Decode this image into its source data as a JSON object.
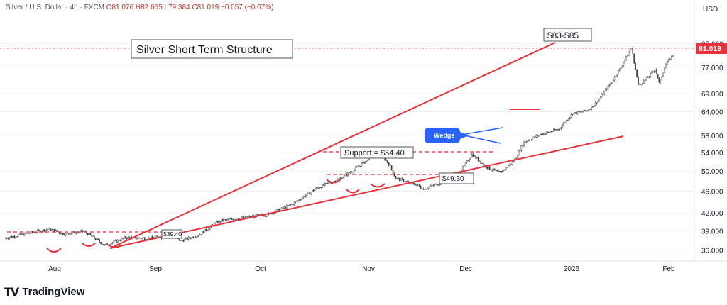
{
  "header": {
    "symbol": "Silver / U.S. Dollar · 4h · FXCM",
    "open": "O81.076",
    "high": "H82.665",
    "low": "L79.384",
    "close": "C81.019",
    "change": "−0.057 (−0.07%)"
  },
  "currency": "USD",
  "brand": "TradingView",
  "colors": {
    "trendline": "#e8323c",
    "wedge": "#2962ff",
    "candle_up": "#3a3a3a",
    "candle_down": "#3a3a3a",
    "price_tag": "#e8323c",
    "grid": "#f0f0f0"
  },
  "chart_data": {
    "type": "candlestick",
    "title": "Silver Short Term Structure",
    "ylim": [
      35,
      90
    ],
    "y_ticks": [
      36.0,
      39.0,
      42.0,
      46.0,
      50.0,
      54.0,
      58.0,
      64.0,
      69.0,
      77.0,
      85.0
    ],
    "y_tick_labels": [
      "36.000",
      "39.000",
      "42.000",
      "46.000",
      "50.000",
      "54.000",
      "58.000",
      "64.000",
      "69.000",
      "77.000",
      "85.000"
    ],
    "x_tick_labels": [
      "Aug",
      "Sep",
      "Oct",
      "Nov",
      "Dec",
      "2026",
      "Feb"
    ],
    "last_price": 81.019,
    "last_price_label": "81.019",
    "price_path": [
      [
        "2025-07-01",
        37.8
      ],
      [
        "2025-07-08",
        38.6
      ],
      [
        "2025-07-14",
        39.3
      ],
      [
        "2025-07-18",
        38.5
      ],
      [
        "2025-07-24",
        38.9
      ],
      [
        "2025-07-30",
        36.7
      ],
      [
        "2025-08-05",
        37.9
      ],
      [
        "2025-08-12",
        37.8
      ],
      [
        "2025-08-18",
        38.2
      ],
      [
        "2025-08-21",
        37.4
      ],
      [
        "2025-08-26",
        38.3
      ],
      [
        "2025-09-01",
        40.6
      ],
      [
        "2025-09-08",
        41.2
      ],
      [
        "2025-09-15",
        41.7
      ],
      [
        "2025-09-22",
        43.5
      ],
      [
        "2025-09-29",
        46.5
      ],
      [
        "2025-10-06",
        48.5
      ],
      [
        "2025-10-10",
        50.3
      ],
      [
        "2025-10-14",
        52.5
      ],
      [
        "2025-10-17",
        54.2
      ],
      [
        "2025-10-20",
        51.5
      ],
      [
        "2025-10-22",
        48.5
      ],
      [
        "2025-10-28",
        47.2
      ],
      [
        "2025-10-30",
        46.4
      ],
      [
        "2025-11-04",
        47.6
      ],
      [
        "2025-11-07",
        47.9
      ],
      [
        "2025-11-10",
        50.3
      ],
      [
        "2025-11-13",
        53.6
      ],
      [
        "2025-11-17",
        50.9
      ],
      [
        "2025-11-21",
        49.6
      ],
      [
        "2025-11-25",
        52.0
      ],
      [
        "2025-11-28",
        56.4
      ],
      [
        "2025-12-03",
        58.3
      ],
      [
        "2025-12-08",
        59.5
      ],
      [
        "2025-12-12",
        63.5
      ],
      [
        "2025-12-16",
        64.2
      ],
      [
        "2025-12-19",
        66.5
      ],
      [
        "2025-12-23",
        72.0
      ],
      [
        "2025-12-26",
        77.0
      ],
      [
        "2025-12-29",
        83.5
      ],
      [
        "2025-12-31",
        71.5
      ],
      [
        "2026-01-02",
        73.0
      ],
      [
        "2026-01-05",
        76.5
      ],
      [
        "2026-01-06",
        72.0
      ],
      [
        "2026-01-08",
        78.0
      ],
      [
        "2026-01-10",
        81.0
      ]
    ],
    "annotations": {
      "target": "$83-$85",
      "support": "Support = $54.40",
      "level_49": "$49.30",
      "level_39": "$39.40",
      "wedge": "Wedge"
    }
  }
}
